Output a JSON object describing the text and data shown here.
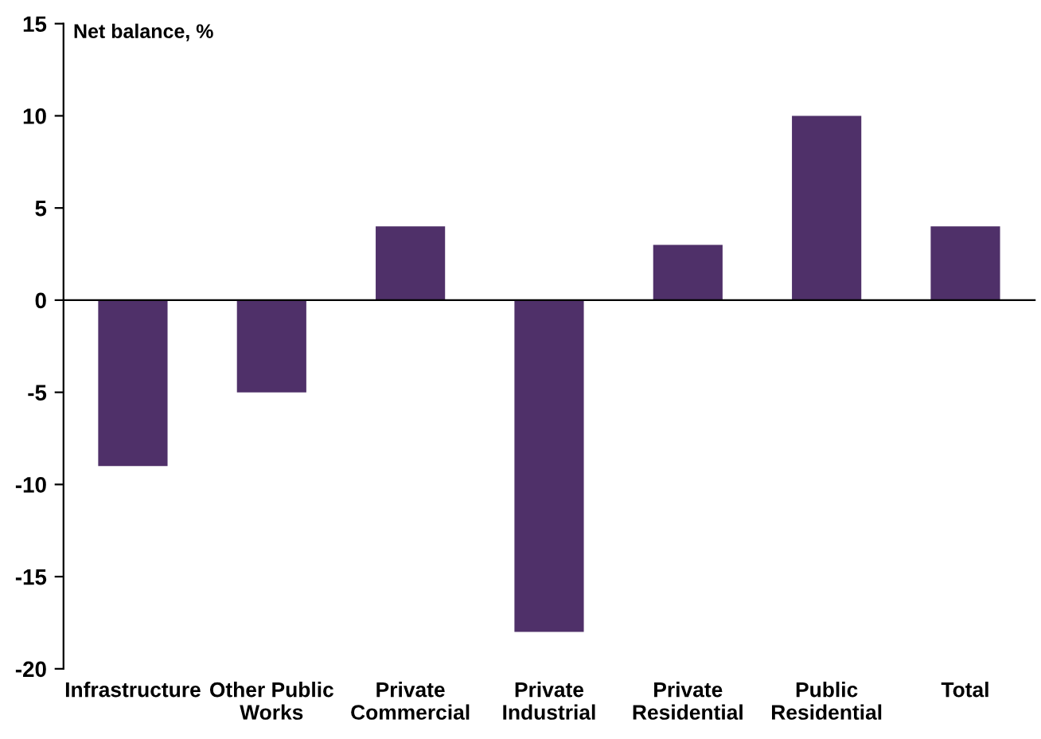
{
  "chart_data": {
    "type": "bar",
    "ylabel": "Net balance, %",
    "categories": [
      "Infrastructure",
      "Other Public\nWorks",
      "Private\nCommercial",
      "Private\nIndustrial",
      "Private\nResidential",
      "Public\nResidential",
      "Total"
    ],
    "values": [
      -9,
      -5,
      4,
      -18,
      3,
      10,
      4
    ],
    "color": "#4f3069",
    "ylim": [
      -20,
      15
    ],
    "yticks": [
      -20,
      -15,
      -10,
      -5,
      0,
      5,
      10,
      15
    ]
  }
}
